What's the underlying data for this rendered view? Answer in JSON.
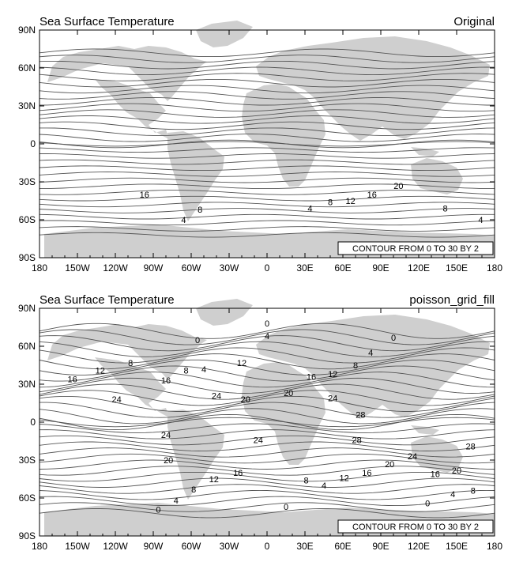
{
  "chart_data": [
    {
      "type": "contour-map",
      "title_left": "Sea Surface Temperature",
      "title_right": "Original",
      "info_label": "CONTOUR FROM 0 TO 30 BY 2",
      "contour_range": [
        0,
        30
      ],
      "contour_interval": 2,
      "x_ticks": [
        "180",
        "150W",
        "120W",
        "90W",
        "60W",
        "30W",
        "0",
        "30E",
        "60E",
        "90E",
        "120E",
        "150E",
        "180"
      ],
      "y_ticks": [
        "90N",
        "60N",
        "30N",
        "0",
        "30S",
        "60S",
        "90S"
      ],
      "xlim": [
        -180,
        180
      ],
      "ylim": [
        -90,
        90
      ],
      "contour_labels": [
        {
          "text": "16",
          "lon": -97,
          "lat": -40
        },
        {
          "text": "8",
          "lon": -53,
          "lat": -52
        },
        {
          "text": "4",
          "lon": -66,
          "lat": -60
        },
        {
          "text": "4",
          "lon": 34,
          "lat": -51
        },
        {
          "text": "8",
          "lon": 50,
          "lat": -46
        },
        {
          "text": "12",
          "lon": 66,
          "lat": -45
        },
        {
          "text": "16",
          "lon": 83,
          "lat": -40
        },
        {
          "text": "20",
          "lon": 104,
          "lat": -33
        },
        {
          "text": "8",
          "lon": 141,
          "lat": -51
        },
        {
          "text": "4",
          "lon": 169,
          "lat": -60
        }
      ]
    },
    {
      "type": "contour-map",
      "title_left": "Sea Surface Temperature",
      "title_right": "poisson_grid_fill",
      "info_label": "CONTOUR FROM 0 TO 30 BY 2",
      "contour_range": [
        0,
        30
      ],
      "contour_interval": 2,
      "x_ticks": [
        "180",
        "150W",
        "120W",
        "90W",
        "60W",
        "30W",
        "0",
        "30E",
        "60E",
        "90E",
        "120E",
        "150E",
        "180"
      ],
      "y_ticks": [
        "90N",
        "60N",
        "30N",
        "0",
        "30S",
        "60S",
        "90S"
      ],
      "xlim": [
        -180,
        180
      ],
      "ylim": [
        -90,
        90
      ],
      "contour_labels": [
        {
          "text": "0",
          "lon": 0,
          "lat": 78
        },
        {
          "text": "4",
          "lon": 0,
          "lat": 68
        },
        {
          "text": "0",
          "lon": -55,
          "lat": 65
        },
        {
          "text": "0",
          "lon": 100,
          "lat": 67
        },
        {
          "text": "4",
          "lon": 82,
          "lat": 55
        },
        {
          "text": "8",
          "lon": -108,
          "lat": 47
        },
        {
          "text": "8",
          "lon": -64,
          "lat": 41
        },
        {
          "text": "4",
          "lon": -50,
          "lat": 42
        },
        {
          "text": "12",
          "lon": -20,
          "lat": 47
        },
        {
          "text": "12",
          "lon": -132,
          "lat": 41
        },
        {
          "text": "16",
          "lon": -154,
          "lat": 34
        },
        {
          "text": "16",
          "lon": -80,
          "lat": 33
        },
        {
          "text": "16",
          "lon": 35,
          "lat": 36
        },
        {
          "text": "12",
          "lon": 52,
          "lat": 38
        },
        {
          "text": "8",
          "lon": 70,
          "lat": 45
        },
        {
          "text": "24",
          "lon": -119,
          "lat": 18
        },
        {
          "text": "24",
          "lon": -40,
          "lat": 21
        },
        {
          "text": "20",
          "lon": -17,
          "lat": 18
        },
        {
          "text": "20",
          "lon": 17,
          "lat": 23
        },
        {
          "text": "24",
          "lon": 52,
          "lat": 19
        },
        {
          "text": "28",
          "lon": 74,
          "lat": 6
        },
        {
          "text": "24",
          "lon": -80,
          "lat": -10
        },
        {
          "text": "24",
          "lon": -7,
          "lat": -14
        },
        {
          "text": "28",
          "lon": 71,
          "lat": -14
        },
        {
          "text": "20",
          "lon": -78,
          "lat": -30
        },
        {
          "text": "24",
          "lon": 115,
          "lat": -27
        },
        {
          "text": "28",
          "lon": 161,
          "lat": -19
        },
        {
          "text": "20",
          "lon": 97,
          "lat": -33
        },
        {
          "text": "16",
          "lon": 79,
          "lat": -40
        },
        {
          "text": "12",
          "lon": 61,
          "lat": -44
        },
        {
          "text": "8",
          "lon": 31,
          "lat": -46
        },
        {
          "text": "4",
          "lon": 45,
          "lat": -50
        },
        {
          "text": "16",
          "lon": -23,
          "lat": -40
        },
        {
          "text": "12",
          "lon": -42,
          "lat": -45
        },
        {
          "text": "8",
          "lon": -58,
          "lat": -53
        },
        {
          "text": "4",
          "lon": -72,
          "lat": -62
        },
        {
          "text": "0",
          "lon": -86,
          "lat": -69
        },
        {
          "text": "0",
          "lon": 15,
          "lat": -67
        },
        {
          "text": "16",
          "lon": 133,
          "lat": -41
        },
        {
          "text": "20",
          "lon": 150,
          "lat": -38
        },
        {
          "text": "4",
          "lon": 147,
          "lat": -57
        },
        {
          "text": "8",
          "lon": 163,
          "lat": -54
        },
        {
          "text": "0",
          "lon": 127,
          "lat": -64
        }
      ]
    }
  ]
}
